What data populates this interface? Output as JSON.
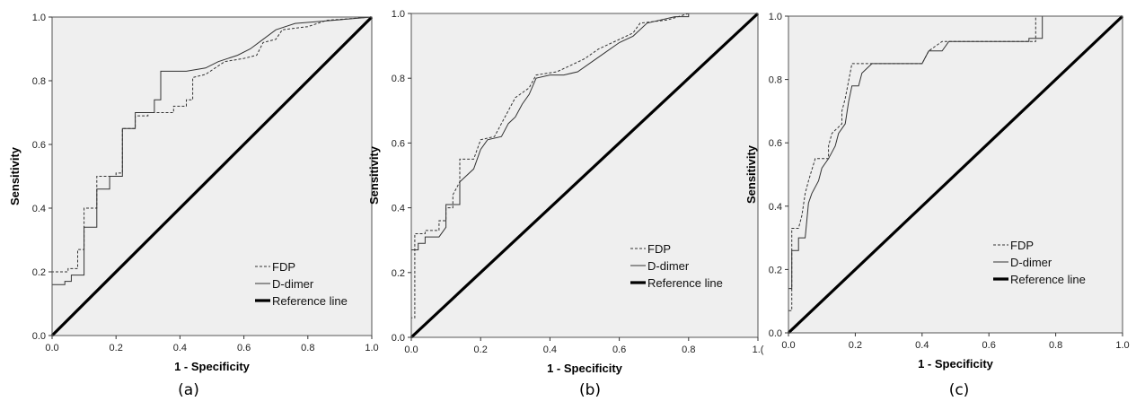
{
  "chart_data": [
    {
      "type": "line",
      "panel_label": "(a)",
      "xlabel": "1 - Specificity",
      "ylabel": "Sensitivity",
      "xlim": [
        0,
        1
      ],
      "ylim": [
        0,
        1
      ],
      "x_ticks": [
        "0.0",
        "0.2",
        "0.4",
        "0.6",
        "0.8",
        "1.0"
      ],
      "y_ticks": [
        "0.0",
        "0.2",
        "0.4",
        "0.6",
        "0.8",
        "1.0"
      ],
      "grid": false,
      "background": "#efefef",
      "legend_position": "bottom-right",
      "series": [
        {
          "name": "FDP",
          "style": "dashed",
          "points": [
            [
              0,
              0
            ],
            [
              0,
              0.2
            ],
            [
              0.05,
              0.2
            ],
            [
              0.05,
              0.21
            ],
            [
              0.08,
              0.21
            ],
            [
              0.08,
              0.27
            ],
            [
              0.1,
              0.27
            ],
            [
              0.1,
              0.4
            ],
            [
              0.14,
              0.4
            ],
            [
              0.14,
              0.5
            ],
            [
              0.2,
              0.5
            ],
            [
              0.2,
              0.51
            ],
            [
              0.22,
              0.51
            ],
            [
              0.22,
              0.65
            ],
            [
              0.26,
              0.65
            ],
            [
              0.26,
              0.69
            ],
            [
              0.3,
              0.69
            ],
            [
              0.3,
              0.7
            ],
            [
              0.38,
              0.7
            ],
            [
              0.38,
              0.72
            ],
            [
              0.42,
              0.72
            ],
            [
              0.42,
              0.74
            ],
            [
              0.44,
              0.74
            ],
            [
              0.44,
              0.81
            ],
            [
              0.48,
              0.82
            ],
            [
              0.54,
              0.86
            ],
            [
              0.6,
              0.87
            ],
            [
              0.64,
              0.88
            ],
            [
              0.66,
              0.92
            ],
            [
              0.7,
              0.93
            ],
            [
              0.72,
              0.96
            ],
            [
              0.8,
              0.97
            ],
            [
              0.86,
              0.99
            ],
            [
              1,
              1
            ]
          ]
        },
        {
          "name": "D-dimer",
          "style": "solid",
          "points": [
            [
              0,
              0
            ],
            [
              0,
              0.16
            ],
            [
              0.04,
              0.16
            ],
            [
              0.04,
              0.17
            ],
            [
              0.06,
              0.17
            ],
            [
              0.06,
              0.19
            ],
            [
              0.1,
              0.19
            ],
            [
              0.1,
              0.34
            ],
            [
              0.14,
              0.34
            ],
            [
              0.14,
              0.46
            ],
            [
              0.18,
              0.46
            ],
            [
              0.18,
              0.5
            ],
            [
              0.22,
              0.5
            ],
            [
              0.22,
              0.65
            ],
            [
              0.26,
              0.65
            ],
            [
              0.26,
              0.7
            ],
            [
              0.32,
              0.7
            ],
            [
              0.32,
              0.74
            ],
            [
              0.34,
              0.74
            ],
            [
              0.34,
              0.83
            ],
            [
              0.38,
              0.83
            ],
            [
              0.42,
              0.83
            ],
            [
              0.48,
              0.84
            ],
            [
              0.52,
              0.86
            ],
            [
              0.58,
              0.88
            ],
            [
              0.62,
              0.9
            ],
            [
              0.66,
              0.93
            ],
            [
              0.7,
              0.96
            ],
            [
              0.76,
              0.98
            ],
            [
              0.88,
              0.99
            ],
            [
              1,
              1
            ]
          ]
        },
        {
          "name": "Reference line",
          "style": "thick",
          "points": [
            [
              0,
              0
            ],
            [
              1,
              1
            ]
          ]
        }
      ]
    },
    {
      "type": "line",
      "panel_label": "(b)",
      "xlabel": "1 - Specificity",
      "ylabel": "Sensitivity",
      "xlim": [
        0,
        1
      ],
      "ylim": [
        0,
        1
      ],
      "x_ticks": [
        "0.0",
        "0.2",
        "0.4",
        "0.6",
        "0.8",
        "1.("
      ],
      "y_ticks": [
        "0.0",
        "0.2",
        "0.4",
        "0.6",
        "0.8",
        "1.0"
      ],
      "grid": false,
      "background": "#efefef",
      "legend_position": "bottom-right",
      "series": [
        {
          "name": "FDP",
          "style": "dashed",
          "points": [
            [
              0,
              0
            ],
            [
              0,
              0.06
            ],
            [
              0.01,
              0.06
            ],
            [
              0.01,
              0.32
            ],
            [
              0.04,
              0.32
            ],
            [
              0.04,
              0.33
            ],
            [
              0.08,
              0.33
            ],
            [
              0.08,
              0.36
            ],
            [
              0.1,
              0.36
            ],
            [
              0.1,
              0.4
            ],
            [
              0.12,
              0.4
            ],
            [
              0.12,
              0.44
            ],
            [
              0.14,
              0.48
            ],
            [
              0.14,
              0.55
            ],
            [
              0.18,
              0.55
            ],
            [
              0.2,
              0.61
            ],
            [
              0.24,
              0.62
            ],
            [
              0.26,
              0.66
            ],
            [
              0.28,
              0.7
            ],
            [
              0.3,
              0.74
            ],
            [
              0.34,
              0.77
            ],
            [
              0.36,
              0.81
            ],
            [
              0.42,
              0.82
            ],
            [
              0.46,
              0.84
            ],
            [
              0.5,
              0.86
            ],
            [
              0.54,
              0.89
            ],
            [
              0.58,
              0.91
            ],
            [
              0.64,
              0.94
            ],
            [
              0.66,
              0.97
            ],
            [
              0.74,
              0.98
            ],
            [
              0.8,
              1
            ],
            [
              1,
              1
            ]
          ]
        },
        {
          "name": "D-dimer",
          "style": "solid",
          "points": [
            [
              0,
              0
            ],
            [
              0,
              0.27
            ],
            [
              0.02,
              0.27
            ],
            [
              0.02,
              0.29
            ],
            [
              0.04,
              0.29
            ],
            [
              0.04,
              0.31
            ],
            [
              0.08,
              0.31
            ],
            [
              0.1,
              0.34
            ],
            [
              0.1,
              0.41
            ],
            [
              0.14,
              0.41
            ],
            [
              0.14,
              0.48
            ],
            [
              0.18,
              0.52
            ],
            [
              0.2,
              0.58
            ],
            [
              0.22,
              0.61
            ],
            [
              0.26,
              0.62
            ],
            [
              0.28,
              0.66
            ],
            [
              0.3,
              0.68
            ],
            [
              0.32,
              0.72
            ],
            [
              0.34,
              0.75
            ],
            [
              0.36,
              0.8
            ],
            [
              0.4,
              0.81
            ],
            [
              0.44,
              0.81
            ],
            [
              0.48,
              0.82
            ],
            [
              0.52,
              0.85
            ],
            [
              0.56,
              0.88
            ],
            [
              0.6,
              0.91
            ],
            [
              0.64,
              0.93
            ],
            [
              0.68,
              0.97
            ],
            [
              0.76,
              0.99
            ],
            [
              0.8,
              0.99
            ],
            [
              0.8,
              1
            ],
            [
              1,
              1
            ]
          ]
        },
        {
          "name": "Reference line",
          "style": "thick",
          "points": [
            [
              0,
              0
            ],
            [
              1,
              1
            ]
          ]
        }
      ]
    },
    {
      "type": "line",
      "panel_label": "(c)",
      "xlabel": "1 - Specificity",
      "ylabel": "Sensitivity",
      "xlim": [
        0,
        1
      ],
      "ylim": [
        0,
        1
      ],
      "x_ticks": [
        "0.0",
        "0.2",
        "0.4",
        "0.6",
        "0.8",
        "1.0"
      ],
      "y_ticks": [
        "0.0",
        "0.2",
        "0.4",
        "0.6",
        "0.8",
        "1.0"
      ],
      "grid": false,
      "background": "#efefef",
      "legend_position": "bottom-right",
      "series": [
        {
          "name": "FDP",
          "style": "dashed",
          "points": [
            [
              0,
              0
            ],
            [
              0,
              0.07
            ],
            [
              0.01,
              0.07
            ],
            [
              0.01,
              0.33
            ],
            [
              0.03,
              0.33
            ],
            [
              0.04,
              0.37
            ],
            [
              0.05,
              0.44
            ],
            [
              0.06,
              0.48
            ],
            [
              0.08,
              0.55
            ],
            [
              0.12,
              0.55
            ],
            [
              0.12,
              0.59
            ],
            [
              0.13,
              0.63
            ],
            [
              0.16,
              0.66
            ],
            [
              0.16,
              0.7
            ],
            [
              0.17,
              0.74
            ],
            [
              0.19,
              0.85
            ],
            [
              0.3,
              0.85
            ],
            [
              0.4,
              0.85
            ],
            [
              0.42,
              0.89
            ],
            [
              0.46,
              0.92
            ],
            [
              0.74,
              0.92
            ],
            [
              0.74,
              1
            ],
            [
              0.76,
              1
            ]
          ]
        },
        {
          "name": "D-dimer",
          "style": "solid",
          "points": [
            [
              0,
              0
            ],
            [
              0,
              0.14
            ],
            [
              0.01,
              0.14
            ],
            [
              0.01,
              0.26
            ],
            [
              0.03,
              0.26
            ],
            [
              0.03,
              0.3
            ],
            [
              0.05,
              0.3
            ],
            [
              0.06,
              0.41
            ],
            [
              0.07,
              0.44
            ],
            [
              0.09,
              0.48
            ],
            [
              0.1,
              0.52
            ],
            [
              0.12,
              0.55
            ],
            [
              0.14,
              0.59
            ],
            [
              0.15,
              0.63
            ],
            [
              0.17,
              0.66
            ],
            [
              0.18,
              0.73
            ],
            [
              0.19,
              0.78
            ],
            [
              0.21,
              0.78
            ],
            [
              0.22,
              0.82
            ],
            [
              0.25,
              0.85
            ],
            [
              0.4,
              0.85
            ],
            [
              0.42,
              0.89
            ],
            [
              0.46,
              0.89
            ],
            [
              0.48,
              0.92
            ],
            [
              0.72,
              0.92
            ],
            [
              0.72,
              0.93
            ],
            [
              0.76,
              0.93
            ],
            [
              0.76,
              1
            ],
            [
              1,
              1
            ]
          ]
        },
        {
          "name": "Reference line",
          "style": "thick",
          "points": [
            [
              0,
              0
            ],
            [
              1,
              1
            ]
          ]
        }
      ]
    }
  ]
}
